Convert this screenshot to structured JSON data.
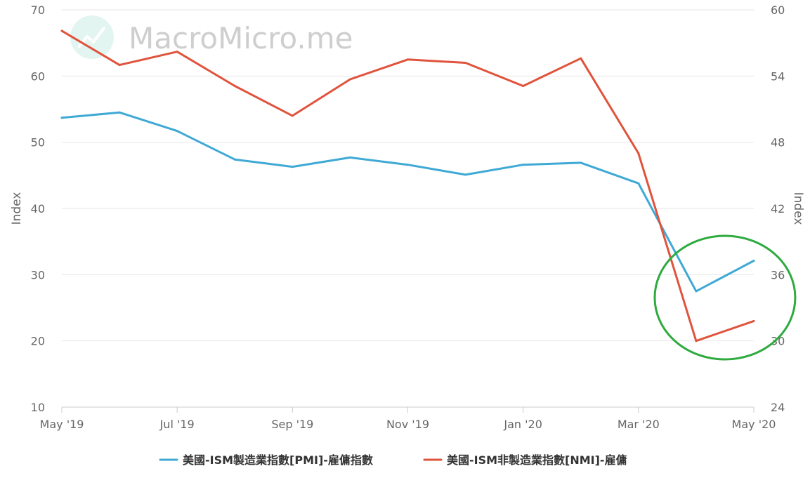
{
  "watermark": {
    "text": "MacroMicro.me"
  },
  "colors": {
    "series_pmi": "#3fa9d5",
    "series_nmi": "#e0533c",
    "highlight": "#2eaa3f",
    "grid": "#e6e6e6"
  },
  "chart_data": {
    "type": "line",
    "x": [
      "May '19",
      "Jun '19",
      "Jul '19",
      "Aug '19",
      "Sep '19",
      "Oct '19",
      "Nov '19",
      "Dec '19",
      "Jan '20",
      "Feb '20",
      "Mar '20",
      "Apr '20",
      "May '20"
    ],
    "x_tick_labels": [
      "May '19",
      "Jul '19",
      "Sep '19",
      "Nov '19",
      "Jan '20",
      "Mar '20",
      "May '20"
    ],
    "y_left": {
      "label": "Index",
      "range": [
        10,
        70
      ],
      "ticks": [
        10,
        20,
        30,
        40,
        50,
        60,
        70
      ]
    },
    "y_right": {
      "label": "Index",
      "range": [
        24,
        60
      ],
      "ticks": [
        24,
        30,
        36,
        42,
        48,
        54,
        60
      ]
    },
    "grid": true,
    "legend_position": "bottom",
    "series": [
      {
        "name": "美國-ISM製造業指數[PMI]-雇傭指數",
        "axis": "left",
        "color": "#3fa9d5",
        "values": [
          53.7,
          54.5,
          51.7,
          47.4,
          46.3,
          47.7,
          46.6,
          45.1,
          46.6,
          46.9,
          43.8,
          27.5,
          32.1
        ]
      },
      {
        "name": "美國-ISM非製造業指數[NMI]-雇傭",
        "axis": "right",
        "color": "#e0533c",
        "values": [
          58.1,
          55.0,
          56.2,
          53.1,
          50.4,
          53.7,
          55.5,
          55.2,
          53.1,
          55.6,
          47.0,
          30.0,
          31.8
        ]
      }
    ],
    "annotations": [
      {
        "type": "ellipse",
        "color": "#2eaa3f",
        "around": [
          "Apr '20",
          "May '20"
        ]
      }
    ]
  }
}
